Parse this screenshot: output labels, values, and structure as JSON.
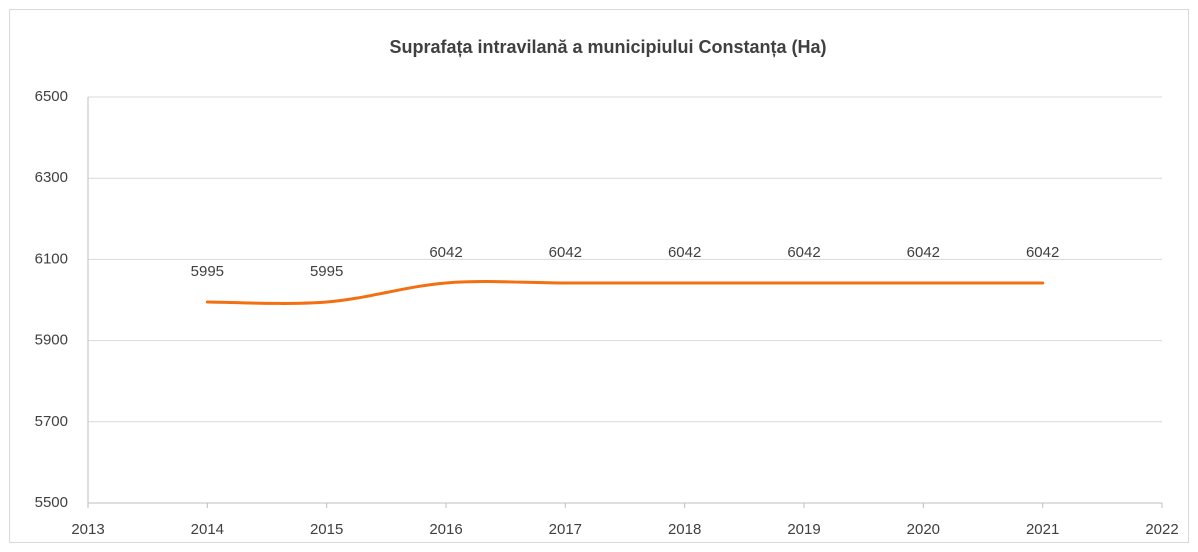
{
  "chart_data": {
    "type": "line",
    "title": "Suprafața intravilană a municipiului Constanța (Ha)",
    "x": [
      2014,
      2015,
      2016,
      2017,
      2018,
      2019,
      2020,
      2021
    ],
    "series": [
      {
        "name": "Suprafața intravilană",
        "color": "#f36f12",
        "values": [
          5995,
          5995,
          6042,
          6042,
          6042,
          6042,
          6042,
          6042
        ]
      }
    ],
    "xlim": [
      2013,
      2022
    ],
    "xticks": [
      2013,
      2014,
      2015,
      2016,
      2017,
      2018,
      2019,
      2020,
      2021,
      2022
    ],
    "ylim": [
      5500,
      6500
    ],
    "yticks": [
      5500,
      5700,
      5900,
      6100,
      6300,
      6500
    ],
    "grid": true,
    "smooth": true
  }
}
